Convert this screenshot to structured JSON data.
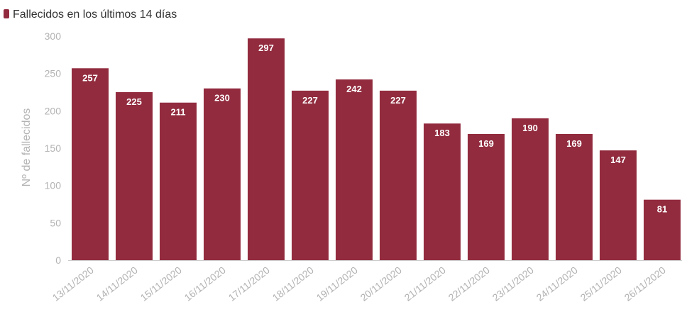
{
  "chart_data": {
    "type": "bar",
    "title": "",
    "xlabel": "",
    "ylabel": "Nº de fallecidos",
    "ylim": [
      0,
      300
    ],
    "yticks": [
      0,
      50,
      100,
      150,
      200,
      250,
      300
    ],
    "grid": false,
    "legend_position": "top-left",
    "bar_color": "#922b3e",
    "categories": [
      "13/11/2020",
      "14/11/2020",
      "15/11/2020",
      "16/11/2020",
      "17/11/2020",
      "18/11/2020",
      "19/11/2020",
      "20/11/2020",
      "21/11/2020",
      "22/11/2020",
      "23/11/2020",
      "24/11/2020",
      "25/11/2020",
      "26/11/2020"
    ],
    "series": [
      {
        "name": "Fallecidos en los últimos 14 días",
        "values": [
          257,
          225,
          211,
          230,
          297,
          227,
          242,
          227,
          183,
          169,
          190,
          169,
          147,
          81
        ]
      }
    ]
  }
}
